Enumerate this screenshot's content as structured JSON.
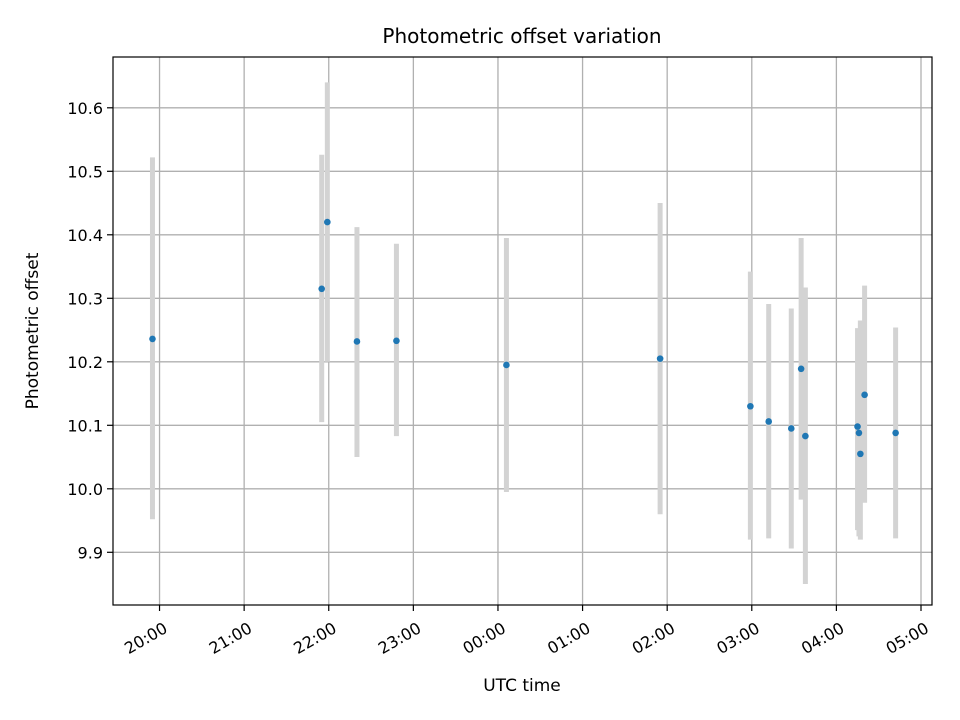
{
  "chart_data": {
    "type": "scatter",
    "title": "Photometric offset variation",
    "xlabel": "UTC time",
    "ylabel": "Photometric offset",
    "x_unit": "hours UTC relative to 00:00 (negative = previous evening)",
    "xlim": [
      -4.55,
      5.13
    ],
    "ylim": [
      9.817,
      10.68
    ],
    "x_ticks": [
      {
        "value": -4,
        "label": "20:00"
      },
      {
        "value": -3,
        "label": "21:00"
      },
      {
        "value": -2,
        "label": "22:00"
      },
      {
        "value": -1,
        "label": "23:00"
      },
      {
        "value": 0,
        "label": "00:00"
      },
      {
        "value": 1,
        "label": "01:00"
      },
      {
        "value": 2,
        "label": "02:00"
      },
      {
        "value": 3,
        "label": "03:00"
      },
      {
        "value": 4,
        "label": "04:00"
      },
      {
        "value": 5,
        "label": "05:00"
      }
    ],
    "y_ticks": [
      {
        "value": 9.9,
        "label": "9.9"
      },
      {
        "value": 10.0,
        "label": "10.0"
      },
      {
        "value": 10.1,
        "label": "10.1"
      },
      {
        "value": 10.2,
        "label": "10.2"
      },
      {
        "value": 10.3,
        "label": "10.3"
      },
      {
        "value": 10.4,
        "label": "10.4"
      },
      {
        "value": 10.5,
        "label": "10.5"
      },
      {
        "value": 10.6,
        "label": "10.6"
      }
    ],
    "grid": true,
    "colors": {
      "point": "#1f77b4",
      "errorbar": "#d3d3d3",
      "grid": "#b0b0b0"
    },
    "points": [
      {
        "time": "19:55",
        "y": 10.236,
        "ylow": 9.952,
        "yhigh": 10.522
      },
      {
        "time": "21:55",
        "y": 10.315,
        "ylow": 10.105,
        "yhigh": 10.526
      },
      {
        "time": "21:59",
        "y": 10.42,
        "ylow": 10.2,
        "yhigh": 10.64
      },
      {
        "time": "22:20",
        "y": 10.232,
        "ylow": 10.05,
        "yhigh": 10.412
      },
      {
        "time": "22:48",
        "y": 10.233,
        "ylow": 10.083,
        "yhigh": 10.386
      },
      {
        "time": "00:06",
        "y": 10.195,
        "ylow": 9.995,
        "yhigh": 10.395
      },
      {
        "time": "01:55",
        "y": 10.205,
        "ylow": 9.96,
        "yhigh": 10.45
      },
      {
        "time": "02:59",
        "y": 10.13,
        "ylow": 9.92,
        "yhigh": 10.342
      },
      {
        "time": "03:12",
        "y": 10.106,
        "ylow": 9.922,
        "yhigh": 10.291
      },
      {
        "time": "03:28",
        "y": 10.095,
        "ylow": 9.906,
        "yhigh": 10.284
      },
      {
        "time": "03:35",
        "y": 10.189,
        "ylow": 9.983,
        "yhigh": 10.395
      },
      {
        "time": "03:38",
        "y": 10.083,
        "ylow": 9.85,
        "yhigh": 10.317
      },
      {
        "time": "04:15",
        "y": 10.098,
        "ylow": 9.935,
        "yhigh": 10.253
      },
      {
        "time": "04:16",
        "y": 10.088,
        "ylow": 9.925,
        "yhigh": 10.25
      },
      {
        "time": "04:17",
        "y": 10.055,
        "ylow": 9.92,
        "yhigh": 10.265
      },
      {
        "time": "04:20",
        "y": 10.148,
        "ylow": 9.978,
        "yhigh": 10.32
      },
      {
        "time": "04:42",
        "y": 10.088,
        "ylow": 9.922,
        "yhigh": 10.254
      }
    ]
  }
}
